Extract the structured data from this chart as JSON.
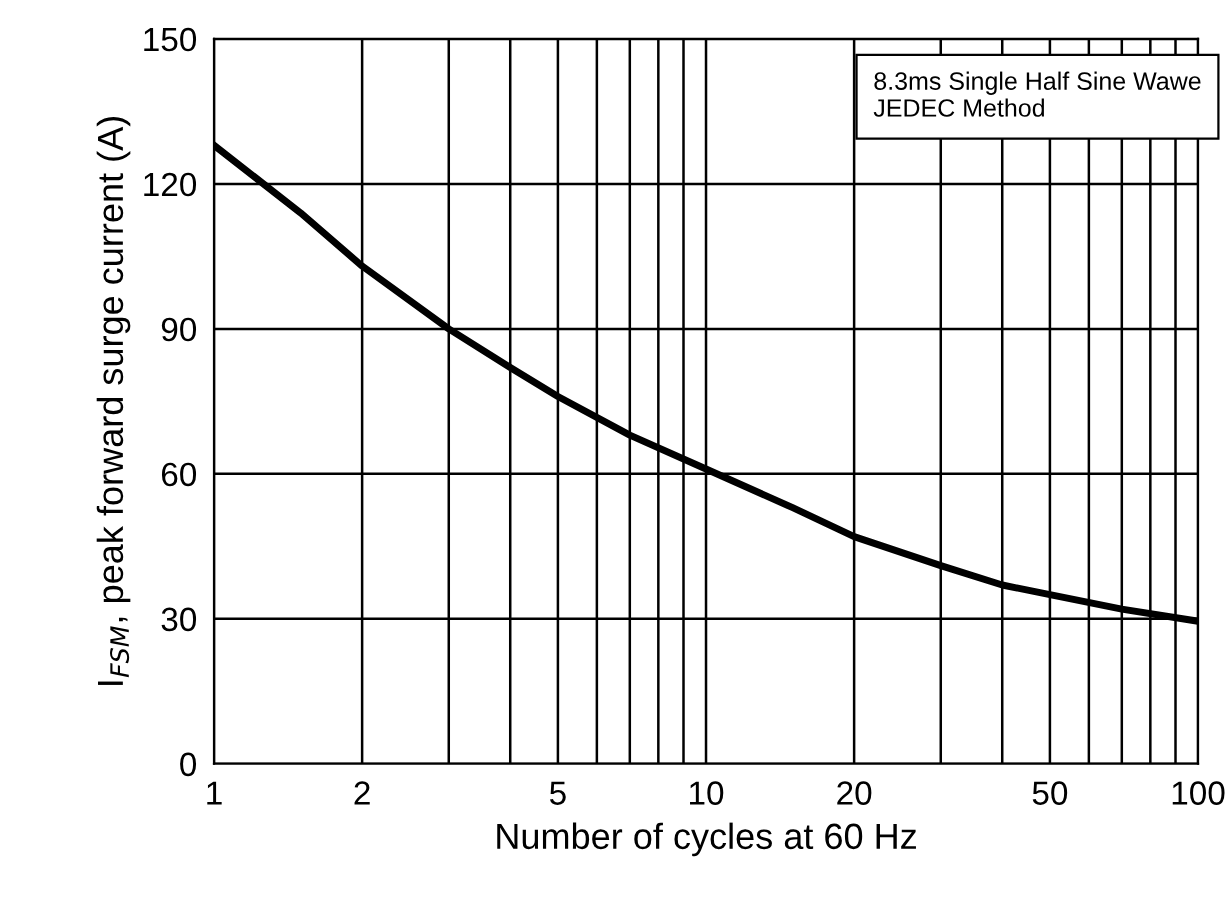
{
  "chart_data": {
    "type": "line",
    "xlabel": "Number of cycles at 60 Hz",
    "ylabel": "I$_{FSM}$, peak forward surge current (A)",
    "x": [
      1,
      1.5,
      2,
      3,
      4,
      5,
      7,
      10,
      15,
      20,
      30,
      40,
      50,
      70,
      100
    ],
    "series": [
      {
        "color": "#000000",
        "values": [
          128,
          114,
          103,
          90,
          82,
          76,
          68,
          61,
          53,
          47,
          41,
          37,
          35,
          32,
          29.5
        ]
      }
    ],
    "log": "x",
    "xlim": [
      1,
      100
    ],
    "ylim": [
      0,
      150
    ],
    "xticks": [
      1,
      2,
      {
        "value": 3,
        "label": null
      },
      {
        "value": 4,
        "label": null
      },
      5,
      {
        "value": 6,
        "label": null
      },
      {
        "value": 7,
        "label": null
      },
      {
        "value": 8,
        "label": null
      },
      {
        "value": 9,
        "label": null
      },
      10,
      20,
      {
        "value": 30,
        "label": null
      },
      {
        "value": 40,
        "label": null
      },
      50,
      {
        "value": 60,
        "label": null
      },
      {
        "value": 70,
        "label": null
      },
      {
        "value": 80,
        "label": null
      },
      {
        "value": 90,
        "label": null
      },
      100
    ],
    "yticks": [
      0,
      30,
      60,
      90,
      120,
      150
    ],
    "grid": true,
    "line_style": "solid",
    "marker": "none",
    "annotations": [
      "8.3ms Single Half Sine Wawe\nJEDEC Method"
    ]
  }
}
